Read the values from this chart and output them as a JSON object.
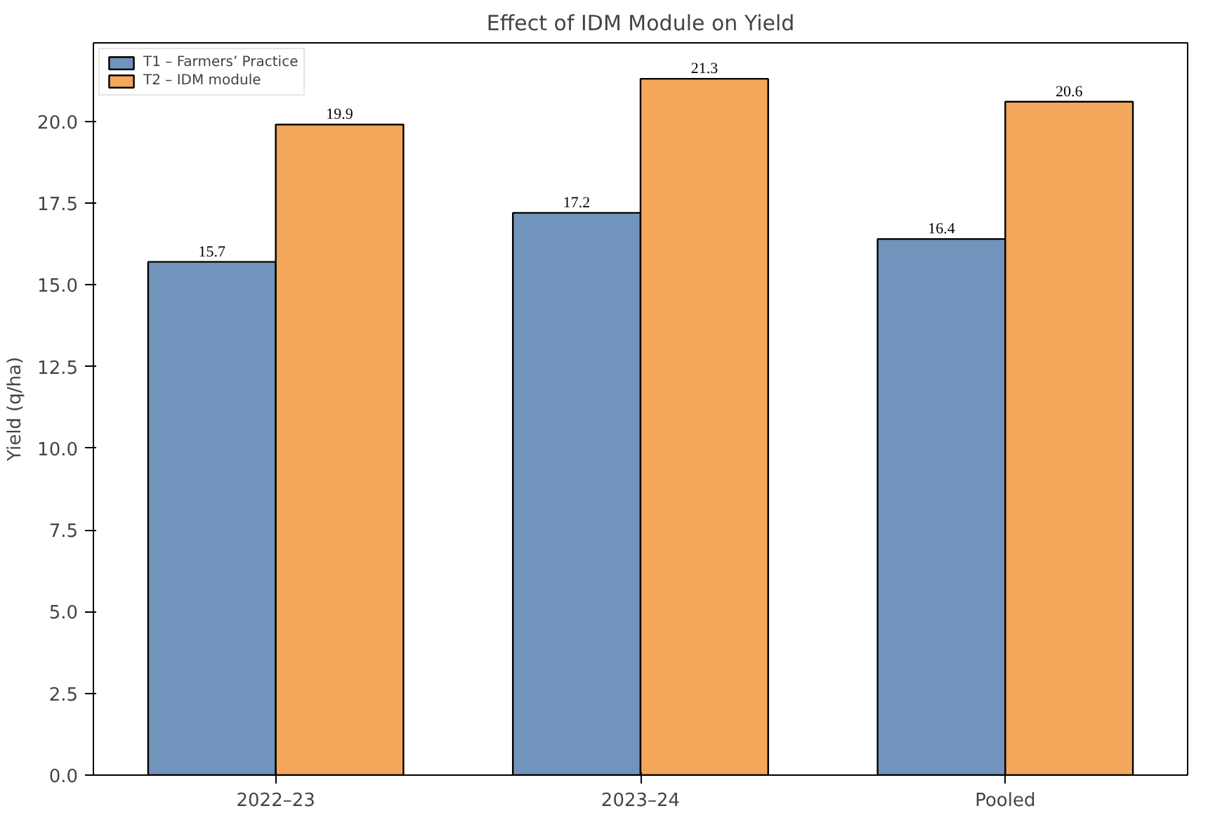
{
  "chart_data": {
    "type": "bar",
    "title": "Effect of IDM Module on Yield",
    "ylabel": "Yield (q/ha)",
    "categories": [
      "2022–23",
      "2023–24",
      "Pooled"
    ],
    "series": [
      {
        "name": "T1 – Farmers’ Practice",
        "color": "#7094bb",
        "values": [
          15.7,
          17.2,
          16.4
        ]
      },
      {
        "name": "T2 – IDM module",
        "color": "#f4a65a",
        "values": [
          19.9,
          21.3,
          20.6
        ]
      }
    ],
    "ylim": [
      0,
      22.4
    ],
    "yticks": [
      {
        "value": 0,
        "label": "0.0"
      },
      {
        "value": 2.5,
        "label": "2.5"
      },
      {
        "value": 5,
        "label": "5.0"
      },
      {
        "value": 7.5,
        "label": "7.5"
      },
      {
        "value": 10,
        "label": "10.0"
      },
      {
        "value": 12.5,
        "label": "12.5"
      },
      {
        "value": 15,
        "label": "15.0"
      },
      {
        "value": 17.5,
        "label": "17.5"
      },
      {
        "value": 20,
        "label": "20.0"
      }
    ],
    "data_labels": true,
    "legend": "top left"
  }
}
